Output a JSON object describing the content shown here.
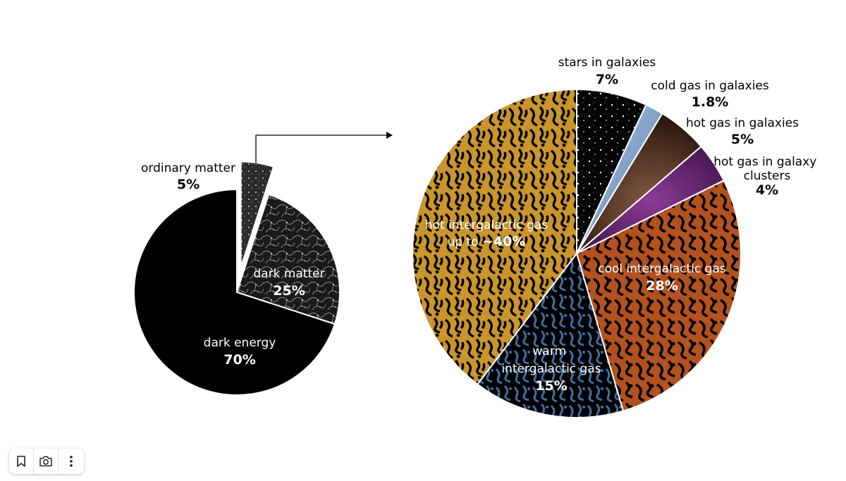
{
  "chart_data": [
    {
      "type": "pie",
      "categories": [
        "ordinary matter",
        "dark matter",
        "dark energy"
      ],
      "values": [
        5,
        25,
        70
      ],
      "labels": [
        {
          "name": "ordinary matter",
          "pct": "5%"
        },
        {
          "name": "dark matter",
          "pct": "25%"
        },
        {
          "name": "dark energy",
          "pct": "70%"
        }
      ],
      "colors": [
        "#2a2a2a",
        "#3a3a3a",
        "#000000"
      ],
      "exploded": "ordinary matter"
    },
    {
      "type": "pie",
      "categories": [
        "stars in galaxies",
        "cold gas in galaxies",
        "hot gas in galaxies",
        "hot gas in galaxy clusters",
        "cool intergalactic gas",
        "warm intergalactic gas",
        "hot intergalactic gas"
      ],
      "values": [
        7,
        1.8,
        5,
        4,
        28,
        15,
        40
      ],
      "labels": [
        {
          "name": "stars in galaxies",
          "pct": "7%"
        },
        {
          "name": "cold gas in galaxies",
          "pct": "1.8%"
        },
        {
          "name": "hot gas in galaxies",
          "pct": "5%"
        },
        {
          "name": "hot gas in galaxy clusters",
          "pct": "4%"
        },
        {
          "name": "cool intergalactic gas",
          "pct": "28%"
        },
        {
          "name": "warm intergalactic gas",
          "pct": "15%"
        },
        {
          "name": "hot intergalactic gas up to",
          "pct": "~40%"
        }
      ],
      "colors": [
        "#0a0a0a",
        "#8fb1d6",
        "#5a3a2a",
        "#5c1f66",
        "#b3521f",
        "#3e6fa0",
        "#c9952c"
      ]
    }
  ],
  "toolbar": {
    "icons": [
      "bookmark-icon",
      "camera-icon",
      "more-vertical-icon"
    ]
  }
}
